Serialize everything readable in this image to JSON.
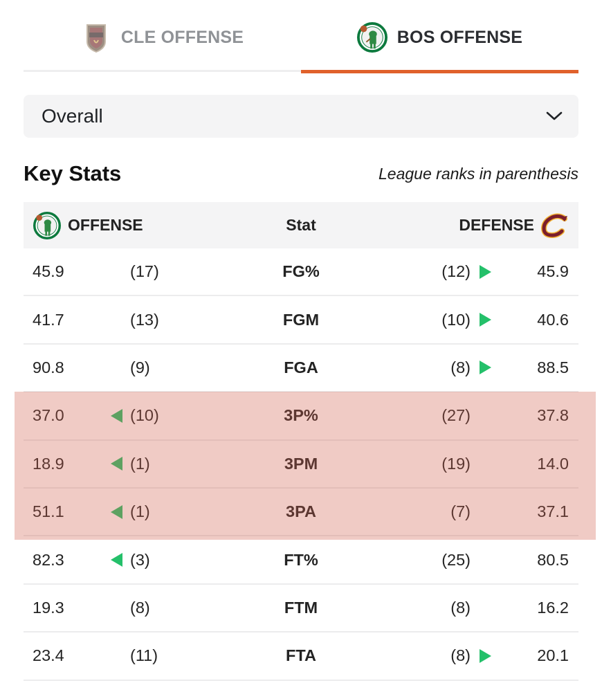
{
  "tabs": [
    {
      "label": "CLE OFFENSE",
      "active": false,
      "logo": "cavaliers-shield-logo-icon"
    },
    {
      "label": "BOS OFFENSE",
      "active": true,
      "logo": "celtics-logo-icon"
    }
  ],
  "accent_color": "#e0612b",
  "dropdown": {
    "value": "Overall",
    "icon": "chevron-down-icon"
  },
  "section": {
    "title": "Key Stats",
    "note": "League ranks in parenthesis"
  },
  "table": {
    "headers": {
      "offense": "OFFENSE",
      "stat": "Stat",
      "defense": "DEFENSE"
    },
    "rows": [
      {
        "off": "45.9",
        "off_rank": "(17)",
        "off_arrow": false,
        "stat": "FG%",
        "def_rank": "(12)",
        "def_arrow": true,
        "def": "45.9"
      },
      {
        "off": "41.7",
        "off_rank": "(13)",
        "off_arrow": false,
        "stat": "FGM",
        "def_rank": "(10)",
        "def_arrow": true,
        "def": "40.6"
      },
      {
        "off": "90.8",
        "off_rank": "(9)",
        "off_arrow": false,
        "stat": "FGA",
        "def_rank": "(8)",
        "def_arrow": true,
        "def": "88.5"
      },
      {
        "off": "37.0",
        "off_rank": "(10)",
        "off_arrow": true,
        "stat": "3P%",
        "def_rank": "(27)",
        "def_arrow": false,
        "def": "37.8"
      },
      {
        "off": "18.9",
        "off_rank": "(1)",
        "off_arrow": true,
        "stat": "3PM",
        "def_rank": "(19)",
        "def_arrow": false,
        "def": "14.0"
      },
      {
        "off": "51.1",
        "off_rank": "(1)",
        "off_arrow": true,
        "stat": "3PA",
        "def_rank": "(7)",
        "def_arrow": false,
        "def": "37.1"
      },
      {
        "off": "82.3",
        "off_rank": "(3)",
        "off_arrow": true,
        "stat": "FT%",
        "def_rank": "(25)",
        "def_arrow": false,
        "def": "80.5"
      },
      {
        "off": "19.3",
        "off_rank": "(8)",
        "off_arrow": false,
        "stat": "FTM",
        "def_rank": "(8)",
        "def_arrow": false,
        "def": "16.2"
      },
      {
        "off": "23.4",
        "off_rank": "(11)",
        "off_arrow": false,
        "stat": "FTA",
        "def_rank": "(8)",
        "def_arrow": true,
        "def": "20.1"
      }
    ],
    "advantage_color": "#24c06a",
    "highlight_color": "#d06150"
  }
}
